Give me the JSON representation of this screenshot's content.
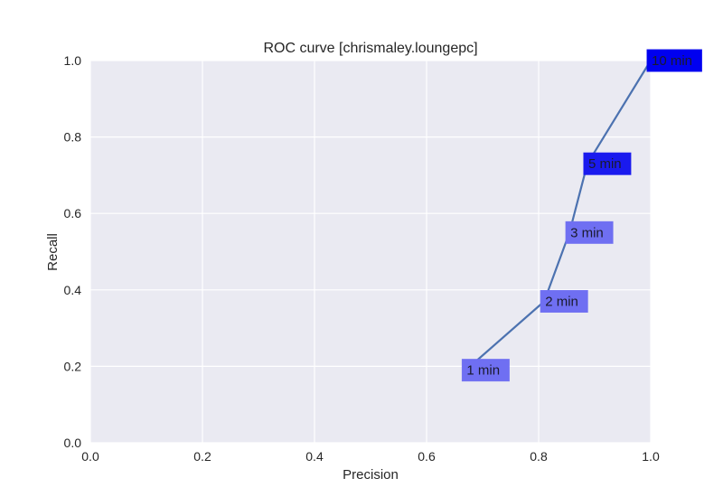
{
  "chart_data": {
    "type": "line",
    "title": "ROC curve [chrismaley.loungepc]",
    "xlabel": "Precision",
    "ylabel": "Recall",
    "xlim": [
      0,
      1
    ],
    "ylim": [
      0,
      1
    ],
    "xticks": [
      "0.0",
      "0.2",
      "0.4",
      "0.6",
      "0.8",
      "1.0"
    ],
    "yticks": [
      "0.0",
      "0.2",
      "0.4",
      "0.6",
      "0.8",
      "1.0"
    ],
    "grid": true,
    "series": [
      {
        "color": "#4c72b0",
        "points": [
          {
            "x": 0.67,
            "y": 0.19,
            "label": "1 min"
          },
          {
            "x": 0.81,
            "y": 0.37,
            "label": "2 min"
          },
          {
            "x": 0.855,
            "y": 0.55,
            "label": "3 min"
          },
          {
            "x": 0.887,
            "y": 0.73,
            "label": "5 min"
          },
          {
            "x": 1.0,
            "y": 1.0,
            "label": "10 min"
          }
        ]
      }
    ],
    "annotation_colors": [
      "#6f6ff2",
      "#6f6ff2",
      "#6f6ff2",
      "#1a1aee",
      "#0000f0"
    ],
    "plot_background": "#eaeaf2",
    "grid_color": "#ffffff"
  }
}
